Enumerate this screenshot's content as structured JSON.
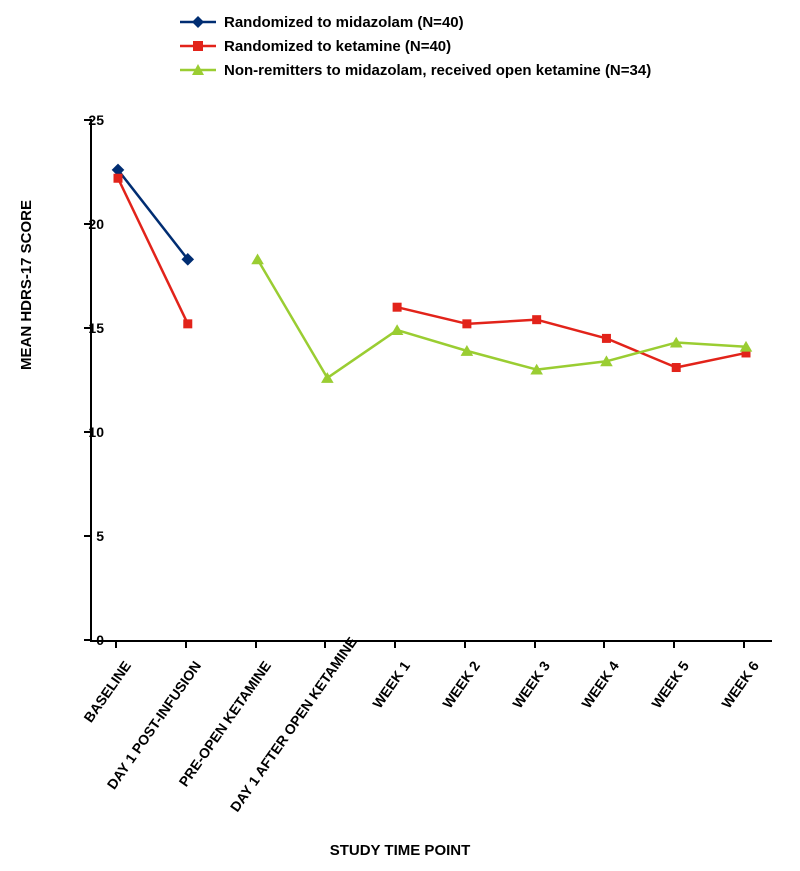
{
  "chart": {
    "type": "line",
    "background_color": "#ffffff",
    "axis_color": "#000000",
    "ylabel": "MEAN HDRS-17 SCORE",
    "xlabel": "STUDY TIME POINT",
    "label_fontsize": 15,
    "tick_fontsize": 14,
    "legend_fontsize": 15,
    "ylim": [
      0,
      25
    ],
    "yticks": [
      0,
      5,
      10,
      15,
      20,
      25
    ],
    "x_categories": [
      "BASELINE",
      "DAY 1 POST-INFUSION",
      "PRE-OPEN KETAMINE",
      "DAY 1 AFTER OPEN KETAMINE",
      "WEEK 1",
      "WEEK 2",
      "WEEK 3",
      "WEEK 4",
      "WEEK 5",
      "WEEK 6"
    ],
    "line_width": 2.5,
    "marker_size": 9,
    "series": [
      {
        "name": "Randomized to midazolam (N=40)",
        "color": "#002d72",
        "marker": "diamond",
        "values": [
          22.6,
          18.3,
          null,
          null,
          null,
          null,
          null,
          null,
          null,
          null
        ]
      },
      {
        "name": "Randomized to ketamine (N=40)",
        "color": "#e2231a",
        "marker": "square",
        "values": [
          22.2,
          15.2,
          null,
          null,
          16.0,
          15.2,
          15.4,
          14.5,
          13.1,
          13.8
        ]
      },
      {
        "name": "Non-remitters to midazolam, received open ketamine (N=34)",
        "color": "#9acd32",
        "marker": "triangle",
        "values": [
          null,
          null,
          18.3,
          12.6,
          14.9,
          13.9,
          13.0,
          13.4,
          14.3,
          14.1
        ]
      }
    ]
  }
}
